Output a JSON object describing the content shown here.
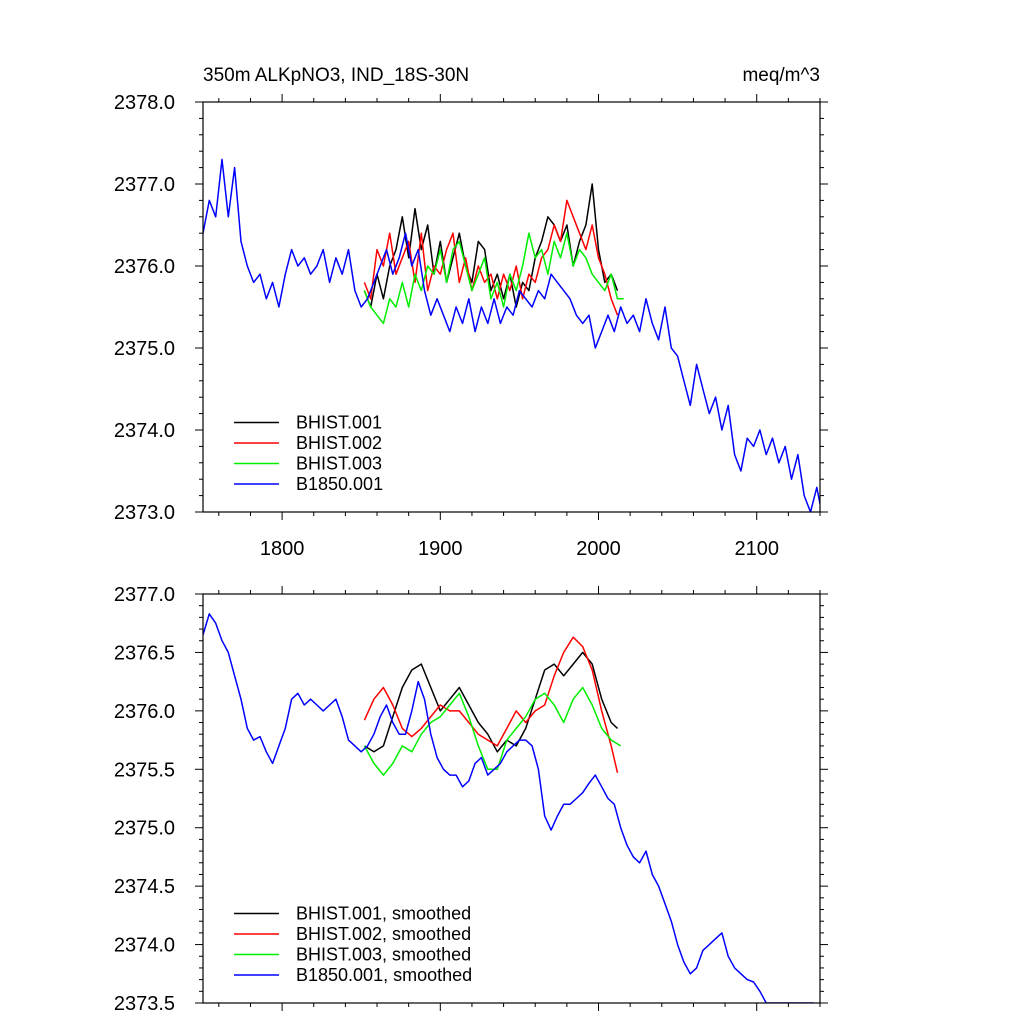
{
  "header": {
    "title": "350m ALKpNO3, IND_18S-30N",
    "units": "meq/m^3"
  },
  "chart_data": [
    {
      "type": "line",
      "title": "350m ALKpNO3, IND_18S-30N",
      "units": "meq/m^3",
      "xlim": [
        1750,
        2140
      ],
      "ylim": [
        2373.0,
        2378.0
      ],
      "x_ticks": [
        1800,
        1900,
        2000,
        2100
      ],
      "x_tick_labels": [
        "1800",
        "1900",
        "2000",
        "2100"
      ],
      "y_ticks": [
        2373.0,
        2374.0,
        2375.0,
        2376.0,
        2377.0,
        2378.0
      ],
      "y_tick_labels": [
        "2373.0",
        "2374.0",
        "2375.0",
        "2376.0",
        "2377.0",
        "2378.0"
      ],
      "legend_position": "bottom-left",
      "series": [
        {
          "name": "BHIST.001",
          "color": "#000000",
          "x": [
            1852,
            1856,
            1860,
            1864,
            1868,
            1872,
            1876,
            1880,
            1884,
            1888,
            1892,
            1896,
            1900,
            1904,
            1908,
            1912,
            1916,
            1920,
            1924,
            1928,
            1932,
            1936,
            1940,
            1944,
            1948,
            1952,
            1956,
            1960,
            1964,
            1968,
            1972,
            1976,
            1980,
            1984,
            1988,
            1992,
            1996,
            2000,
            2004,
            2008,
            2012
          ],
          "y": [
            2375.7,
            2375.5,
            2375.9,
            2375.6,
            2376.0,
            2376.2,
            2376.6,
            2376.1,
            2376.7,
            2376.2,
            2376.5,
            2375.9,
            2376.3,
            2375.8,
            2376.1,
            2376.4,
            2376.0,
            2375.8,
            2376.3,
            2376.2,
            2375.7,
            2375.9,
            2375.6,
            2375.9,
            2375.5,
            2375.8,
            2375.7,
            2376.1,
            2376.3,
            2376.6,
            2376.5,
            2376.3,
            2376.5,
            2376.0,
            2376.3,
            2376.5,
            2377.0,
            2376.2,
            2375.8,
            2375.9,
            2375.7
          ]
        },
        {
          "name": "BHIST.002",
          "color": "#ff0000",
          "x": [
            1852,
            1856,
            1860,
            1864,
            1868,
            1872,
            1876,
            1880,
            1884,
            1888,
            1892,
            1896,
            1900,
            1904,
            1908,
            1912,
            1916,
            1920,
            1924,
            1928,
            1932,
            1936,
            1940,
            1944,
            1948,
            1952,
            1956,
            1960,
            1964,
            1968,
            1972,
            1976,
            1980,
            1984,
            1988,
            1992,
            1996,
            2000,
            2004,
            2008,
            2012
          ],
          "y": [
            2375.8,
            2375.6,
            2376.2,
            2376.0,
            2376.4,
            2375.9,
            2376.1,
            2376.3,
            2375.8,
            2376.4,
            2375.7,
            2376.0,
            2375.9,
            2376.2,
            2376.4,
            2375.8,
            2376.1,
            2375.7,
            2376.0,
            2375.8,
            2375.9,
            2375.6,
            2375.9,
            2375.7,
            2376.0,
            2375.6,
            2375.9,
            2375.8,
            2376.1,
            2376.2,
            2376.5,
            2376.3,
            2376.8,
            2376.6,
            2376.4,
            2376.2,
            2376.5,
            2376.1,
            2375.9,
            2375.6,
            2375.4
          ]
        },
        {
          "name": "BHIST.003",
          "color": "#00ee00",
          "x": [
            1852,
            1856,
            1860,
            1864,
            1868,
            1872,
            1876,
            1880,
            1884,
            1888,
            1892,
            1896,
            1900,
            1904,
            1908,
            1912,
            1916,
            1920,
            1924,
            1928,
            1932,
            1936,
            1940,
            1944,
            1948,
            1952,
            1956,
            1960,
            1964,
            1968,
            1972,
            1976,
            1980,
            1984,
            1988,
            1992,
            1996,
            2000,
            2004,
            2008,
            2012,
            2016
          ],
          "y": [
            2375.7,
            2375.5,
            2375.4,
            2375.3,
            2375.6,
            2375.5,
            2375.8,
            2375.5,
            2375.9,
            2375.7,
            2376.0,
            2375.9,
            2376.2,
            2375.8,
            2376.2,
            2376.3,
            2376.0,
            2375.7,
            2375.9,
            2376.1,
            2375.6,
            2375.8,
            2375.5,
            2375.9,
            2375.7,
            2376.0,
            2376.4,
            2376.1,
            2376.2,
            2375.9,
            2376.3,
            2376.1,
            2376.4,
            2376.0,
            2376.2,
            2376.1,
            2375.9,
            2375.8,
            2375.7,
            2375.9,
            2375.6,
            2375.6
          ]
        },
        {
          "name": "B1850.001",
          "color": "#0000ff",
          "x": [
            1750,
            1754,
            1758,
            1762,
            1766,
            1770,
            1774,
            1778,
            1782,
            1786,
            1790,
            1794,
            1798,
            1802,
            1806,
            1810,
            1814,
            1818,
            1822,
            1826,
            1830,
            1834,
            1838,
            1842,
            1846,
            1850,
            1854,
            1858,
            1862,
            1866,
            1870,
            1874,
            1878,
            1882,
            1886,
            1890,
            1894,
            1898,
            1902,
            1906,
            1910,
            1914,
            1918,
            1922,
            1926,
            1930,
            1934,
            1938,
            1942,
            1946,
            1950,
            1954,
            1958,
            1962,
            1966,
            1970,
            1974,
            1978,
            1982,
            1986,
            1990,
            1994,
            1998,
            2002,
            2006,
            2010,
            2014,
            2018,
            2022,
            2026,
            2030,
            2034,
            2038,
            2042,
            2046,
            2050,
            2054,
            2058,
            2062,
            2066,
            2070,
            2074,
            2078,
            2082,
            2086,
            2090,
            2094,
            2098,
            2102,
            2106,
            2110,
            2114,
            2118,
            2122,
            2126,
            2130,
            2134,
            2138,
            2140
          ],
          "y": [
            2376.4,
            2376.8,
            2376.6,
            2377.3,
            2376.6,
            2377.2,
            2376.3,
            2376.0,
            2375.8,
            2375.9,
            2375.6,
            2375.8,
            2375.5,
            2375.9,
            2376.2,
            2376.0,
            2376.1,
            2375.9,
            2376.0,
            2376.2,
            2375.8,
            2376.1,
            2375.9,
            2376.2,
            2375.7,
            2375.5,
            2375.6,
            2375.8,
            2376.0,
            2376.2,
            2375.9,
            2376.1,
            2376.4,
            2376.0,
            2376.2,
            2375.7,
            2375.4,
            2375.6,
            2375.4,
            2375.2,
            2375.5,
            2375.3,
            2375.6,
            2375.2,
            2375.5,
            2375.3,
            2375.6,
            2375.3,
            2375.5,
            2375.4,
            2375.7,
            2375.6,
            2375.5,
            2375.7,
            2375.6,
            2375.9,
            2375.8,
            2375.7,
            2375.6,
            2375.4,
            2375.3,
            2375.4,
            2375.0,
            2375.2,
            2375.4,
            2375.2,
            2375.5,
            2375.3,
            2375.4,
            2375.2,
            2375.6,
            2375.3,
            2375.1,
            2375.5,
            2375.0,
            2374.9,
            2374.6,
            2374.3,
            2374.8,
            2374.5,
            2374.2,
            2374.4,
            2374.0,
            2374.3,
            2373.7,
            2373.5,
            2373.9,
            2373.8,
            2374.0,
            2373.7,
            2373.9,
            2373.6,
            2373.8,
            2373.4,
            2373.7,
            2373.2,
            2373.0,
            2373.3,
            2373.1
          ]
        }
      ]
    },
    {
      "type": "line",
      "xlim": [
        1750,
        2140
      ],
      "ylim": [
        2373.5,
        2377.0
      ],
      "x_ticks": [
        1800,
        1900,
        2000,
        2100
      ],
      "y_ticks": [
        2373.5,
        2374.0,
        2374.5,
        2375.0,
        2375.5,
        2376.0,
        2376.5,
        2377.0
      ],
      "y_tick_labels": [
        "2373.5",
        "2374.0",
        "2374.5",
        "2375.0",
        "2375.5",
        "2376.0",
        "2376.5",
        "2377.0"
      ],
      "legend_position": "bottom-left",
      "series": [
        {
          "name": "BHIST.001, smoothed",
          "color": "#000000",
          "x": [
            1852,
            1858,
            1864,
            1870,
            1876,
            1882,
            1888,
            1894,
            1900,
            1906,
            1912,
            1918,
            1924,
            1930,
            1936,
            1942,
            1948,
            1954,
            1960,
            1966,
            1972,
            1978,
            1984,
            1990,
            1996,
            2002,
            2008,
            2012
          ],
          "y": [
            2375.7,
            2375.65,
            2375.7,
            2375.95,
            2376.2,
            2376.35,
            2376.4,
            2376.2,
            2376.0,
            2376.1,
            2376.2,
            2376.05,
            2375.9,
            2375.8,
            2375.65,
            2375.75,
            2375.7,
            2375.85,
            2376.1,
            2376.35,
            2376.4,
            2376.3,
            2376.4,
            2376.5,
            2376.4,
            2376.1,
            2375.9,
            2375.85
          ]
        },
        {
          "name": "BHIST.002, smoothed",
          "color": "#ff0000",
          "x": [
            1852,
            1858,
            1864,
            1870,
            1876,
            1882,
            1888,
            1894,
            1900,
            1906,
            1912,
            1918,
            1924,
            1930,
            1936,
            1942,
            1948,
            1954,
            1960,
            1966,
            1972,
            1978,
            1984,
            1990,
            1996,
            2002,
            2008,
            2012
          ],
          "y": [
            2375.92,
            2376.1,
            2376.2,
            2376.05,
            2375.85,
            2375.78,
            2375.85,
            2375.95,
            2376.05,
            2376.0,
            2376.0,
            2375.9,
            2375.8,
            2375.75,
            2375.7,
            2375.85,
            2376.0,
            2375.9,
            2376.0,
            2376.05,
            2376.3,
            2376.5,
            2376.63,
            2376.55,
            2376.35,
            2376.0,
            2375.7,
            2375.47
          ]
        },
        {
          "name": "BHIST.003, smoothed",
          "color": "#00ee00",
          "x": [
            1852,
            1858,
            1864,
            1870,
            1876,
            1882,
            1888,
            1894,
            1900,
            1906,
            1912,
            1918,
            1924,
            1930,
            1936,
            1942,
            1948,
            1954,
            1960,
            1966,
            1972,
            1978,
            1984,
            1990,
            1996,
            2002,
            2008,
            2014
          ],
          "y": [
            2375.7,
            2375.55,
            2375.45,
            2375.55,
            2375.7,
            2375.65,
            2375.8,
            2375.9,
            2375.95,
            2376.05,
            2376.15,
            2375.95,
            2375.7,
            2375.5,
            2375.5,
            2375.75,
            2375.85,
            2375.95,
            2376.1,
            2376.15,
            2376.05,
            2375.9,
            2376.1,
            2376.2,
            2376.05,
            2375.85,
            2375.75,
            2375.7
          ]
        },
        {
          "name": "B1850.001, smoothed",
          "color": "#0000ff",
          "x": [
            1750,
            1754,
            1758,
            1762,
            1766,
            1770,
            1774,
            1778,
            1782,
            1786,
            1790,
            1794,
            1798,
            1802,
            1806,
            1810,
            1814,
            1818,
            1822,
            1826,
            1830,
            1834,
            1838,
            1842,
            1846,
            1850,
            1854,
            1858,
            1862,
            1866,
            1870,
            1874,
            1878,
            1882,
            1886,
            1890,
            1894,
            1898,
            1902,
            1906,
            1910,
            1914,
            1918,
            1922,
            1926,
            1930,
            1934,
            1938,
            1942,
            1946,
            1950,
            1954,
            1958,
            1962,
            1966,
            1970,
            1974,
            1978,
            1982,
            1986,
            1990,
            1994,
            1998,
            2002,
            2006,
            2010,
            2014,
            2018,
            2022,
            2026,
            2030,
            2034,
            2038,
            2042,
            2046,
            2050,
            2054,
            2058,
            2062,
            2066,
            2070,
            2074,
            2078,
            2082,
            2086,
            2090,
            2094,
            2098,
            2102,
            2106,
            2110,
            2114,
            2118,
            2122,
            2126,
            2130,
            2134,
            2136
          ],
          "y": [
            2376.65,
            2376.83,
            2376.75,
            2376.6,
            2376.5,
            2376.3,
            2376.1,
            2375.85,
            2375.75,
            2375.78,
            2375.65,
            2375.55,
            2375.7,
            2375.85,
            2376.1,
            2376.15,
            2376.05,
            2376.1,
            2376.05,
            2376.0,
            2376.05,
            2376.1,
            2375.95,
            2375.75,
            2375.7,
            2375.65,
            2375.7,
            2375.8,
            2375.95,
            2376.05,
            2375.9,
            2375.8,
            2375.8,
            2376.0,
            2376.25,
            2376.1,
            2375.8,
            2375.6,
            2375.5,
            2375.45,
            2375.45,
            2375.35,
            2375.4,
            2375.55,
            2375.6,
            2375.45,
            2375.5,
            2375.55,
            2375.65,
            2375.7,
            2375.75,
            2375.75,
            2375.7,
            2375.5,
            2375.1,
            2374.98,
            2375.1,
            2375.2,
            2375.2,
            2375.25,
            2375.3,
            2375.38,
            2375.45,
            2375.35,
            2375.25,
            2375.2,
            2375.0,
            2374.85,
            2374.75,
            2374.7,
            2374.8,
            2374.6,
            2374.5,
            2374.35,
            2374.2,
            2374.0,
            2373.85,
            2373.75,
            2373.8,
            2373.95,
            2374.0,
            2374.05,
            2374.1,
            2373.9,
            2373.8,
            2373.75,
            2373.7,
            2373.68,
            2373.6,
            2373.5,
            2373.5,
            2373.5,
            2373.5,
            2373.5,
            2373.5,
            2373.5,
            2373.5,
            2373.5
          ]
        }
      ]
    }
  ]
}
